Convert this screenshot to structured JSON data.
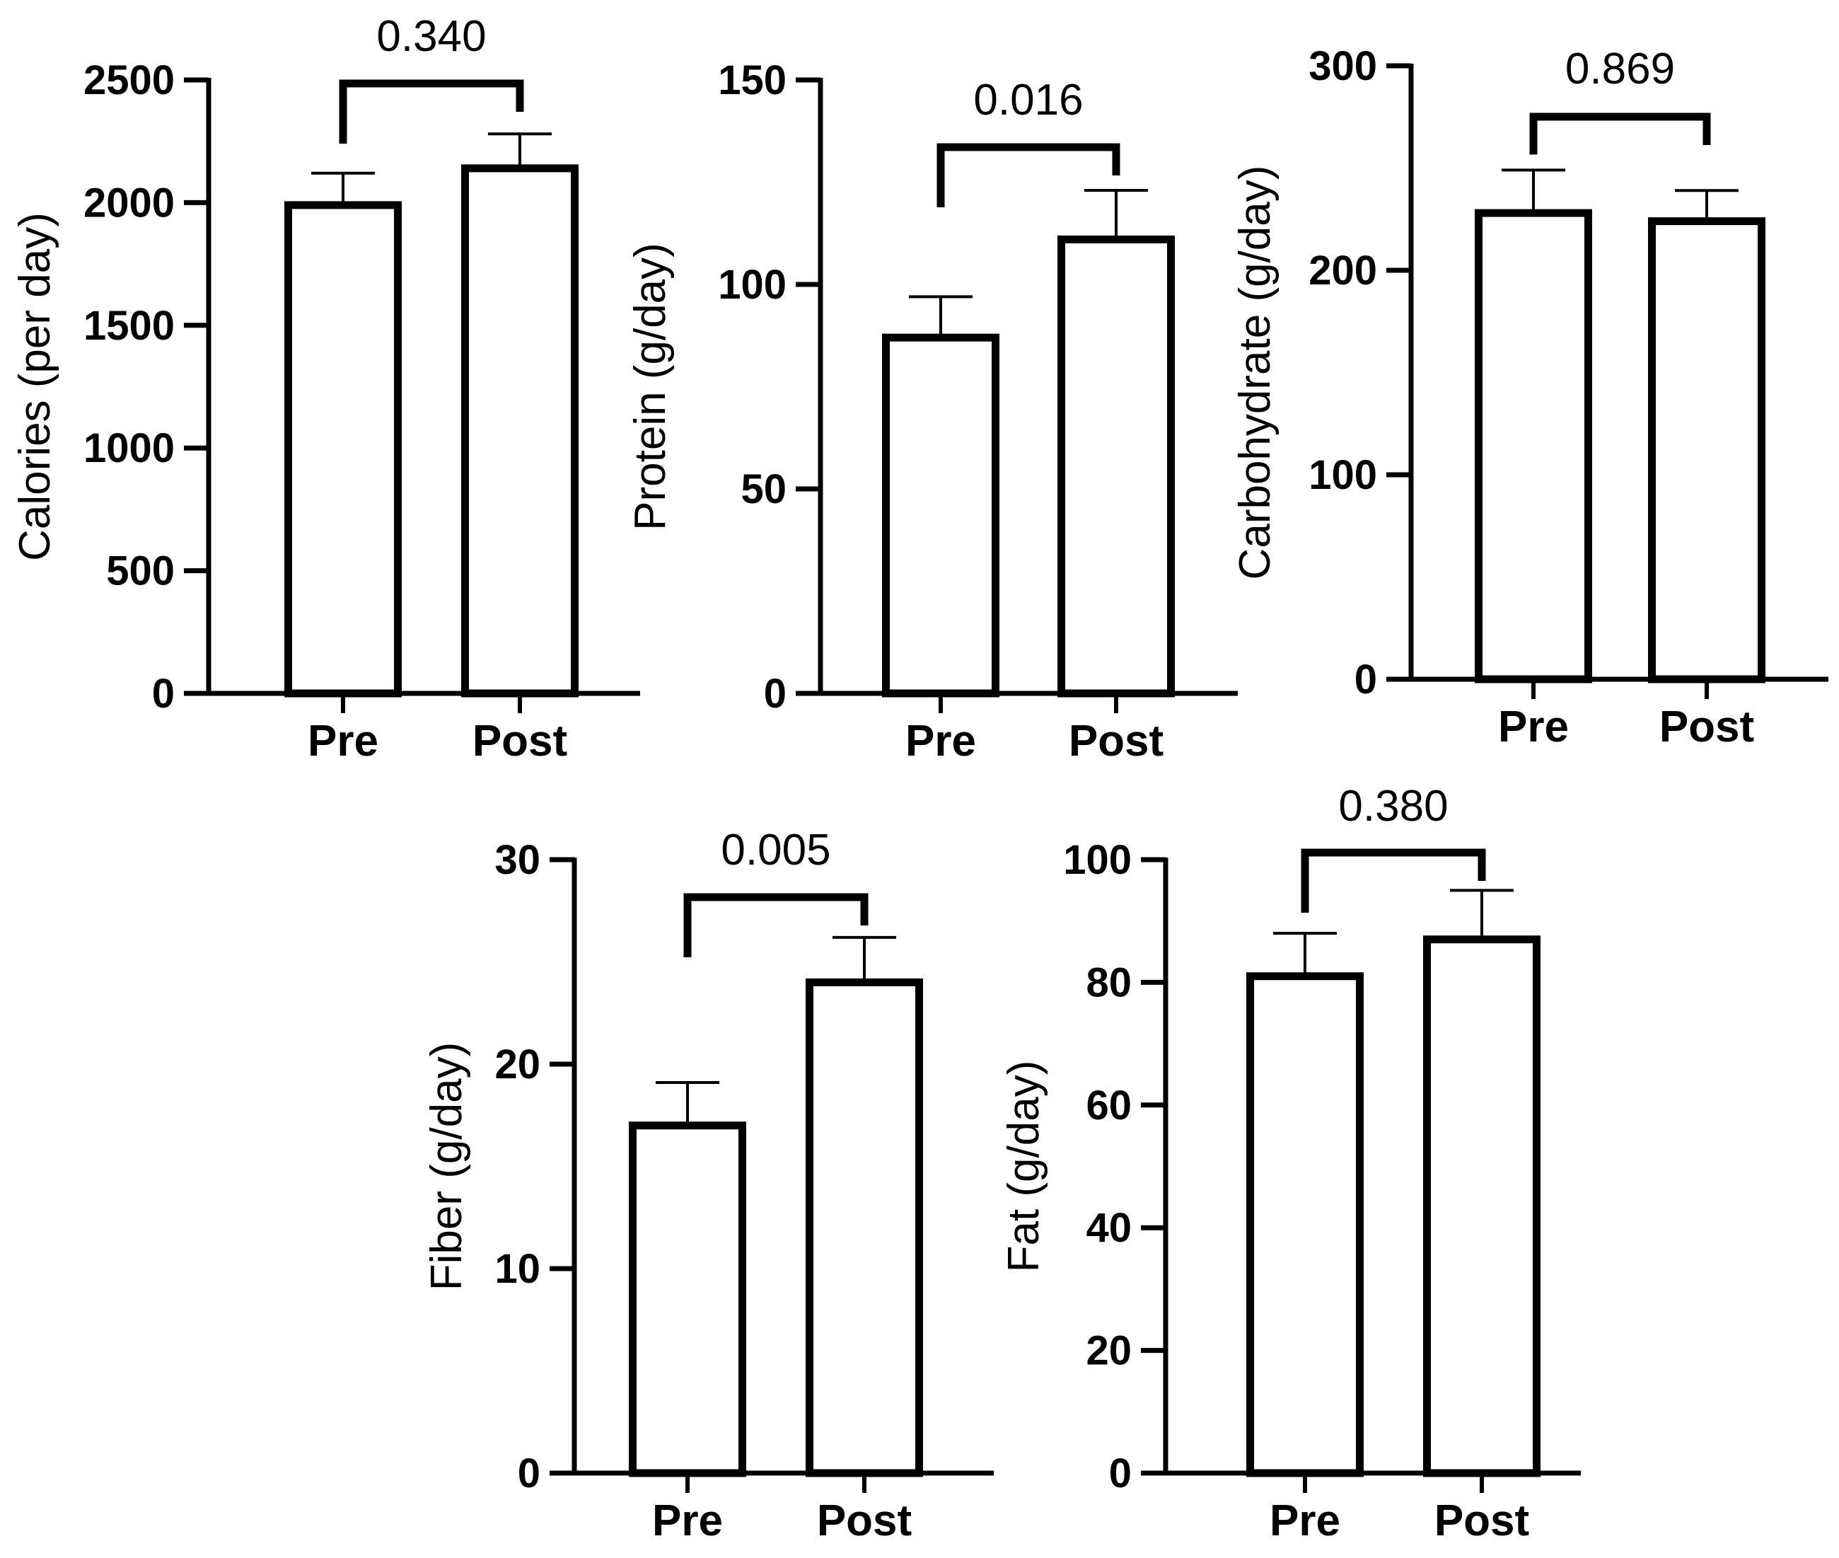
{
  "chart_data": [
    {
      "type": "bar",
      "categories": [
        "Pre",
        "Post"
      ],
      "values": [
        1990,
        2140
      ],
      "errors": [
        130,
        140
      ],
      "ylabel": "Calories (per day)",
      "ylim": [
        0,
        2500
      ],
      "yticks": [
        0,
        500,
        1000,
        1500,
        2000,
        2500
      ],
      "yticklabels": [
        "0",
        "500",
        "1000",
        "1500",
        "2000",
        "2500"
      ],
      "pvalue": "0.340",
      "grid": false
    },
    {
      "type": "bar",
      "categories": [
        "Pre",
        "Post"
      ],
      "values": [
        87,
        111
      ],
      "errors": [
        10,
        12
      ],
      "ylabel": "Protein (g/day)",
      "ylim": [
        0,
        150
      ],
      "yticks": [
        0,
        50,
        100,
        150
      ],
      "yticklabels": [
        "0",
        "50",
        "100",
        "150"
      ],
      "pvalue": "0.016",
      "grid": false
    },
    {
      "type": "bar",
      "categories": [
        "Pre",
        "Post"
      ],
      "values": [
        228,
        224
      ],
      "errors": [
        21,
        15
      ],
      "ylabel": "Carbohydrate (g/day)",
      "ylim": [
        0,
        300
      ],
      "yticks": [
        0,
        100,
        200,
        300
      ],
      "yticklabels": [
        "0",
        "100",
        "200",
        "300"
      ],
      "pvalue": "0.869",
      "grid": false
    },
    {
      "type": "bar",
      "categories": [
        "Pre",
        "Post"
      ],
      "values": [
        17,
        24
      ],
      "errors": [
        2.1,
        2.2
      ],
      "ylabel": "Fiber (g/day)",
      "ylim": [
        0,
        30
      ],
      "yticks": [
        0,
        10,
        20,
        30
      ],
      "yticklabels": [
        "0",
        "10",
        "20",
        "30"
      ],
      "pvalue": "0.005",
      "grid": false
    },
    {
      "type": "bar",
      "categories": [
        "Pre",
        "Post"
      ],
      "values": [
        81,
        87
      ],
      "errors": [
        7,
        8
      ],
      "ylabel": "Fat (g/day)",
      "ylim": [
        0,
        100
      ],
      "yticks": [
        0,
        20,
        40,
        60,
        80,
        100
      ],
      "yticklabels": [
        "0",
        "20",
        "40",
        "60",
        "80",
        "100"
      ],
      "pvalue": "0.380",
      "grid": false
    }
  ]
}
